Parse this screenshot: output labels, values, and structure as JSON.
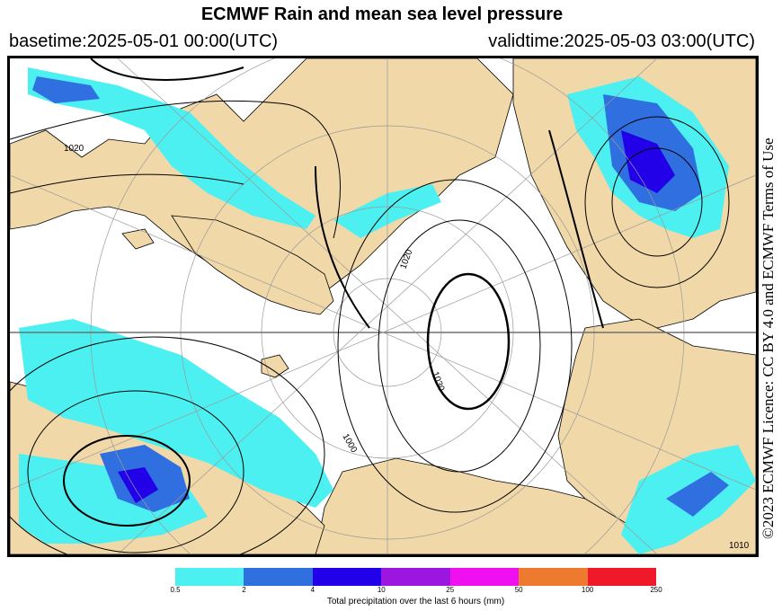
{
  "header": {
    "title": "ECMWF Rain and mean sea level pressure",
    "basetime": "basetime:2025-05-01 00:00(UTC)",
    "validtime": "validtime:2025-05-03 03:00(UTC)"
  },
  "licence": "©2023 ECMWF Licence: CC BY 4.0 and ECMWF Terms of Use",
  "map": {
    "projection": "polar stereographic (North Pole)",
    "colors": {
      "land": "#f0d8a8",
      "sea": "#ffffff",
      "graticule": "#9a9a9a",
      "isobar": "#000000"
    },
    "isobar_labels": [
      "1020",
      "1020",
      "1030",
      "1000",
      "1010"
    ]
  },
  "legend": {
    "title": "Total precipitation over the last 6 hours (mm)",
    "ticks": [
      "0.5",
      "2",
      "4",
      "10",
      "25",
      "50",
      "100",
      "250"
    ],
    "colors": [
      "#4df0f0",
      "#2f6fe0",
      "#2200e8",
      "#9b17e0",
      "#ee10ee",
      "#ee7a30",
      "#ee1a2a"
    ]
  }
}
